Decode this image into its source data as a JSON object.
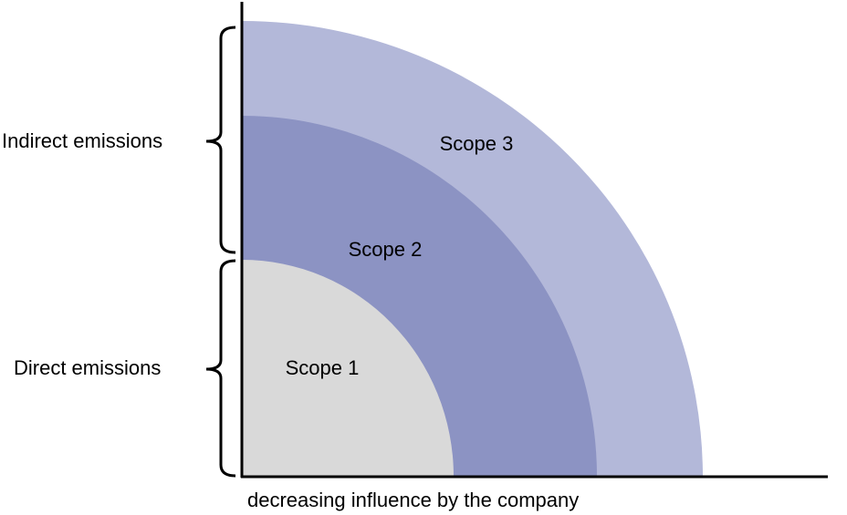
{
  "labels": {
    "indirect": "Indirect emissions",
    "direct": "Direct emissions"
  },
  "scopes": [
    "Scope 1",
    "Scope 2",
    "Scope 3"
  ],
  "axis_label": "decreasing influence by the company"
}
